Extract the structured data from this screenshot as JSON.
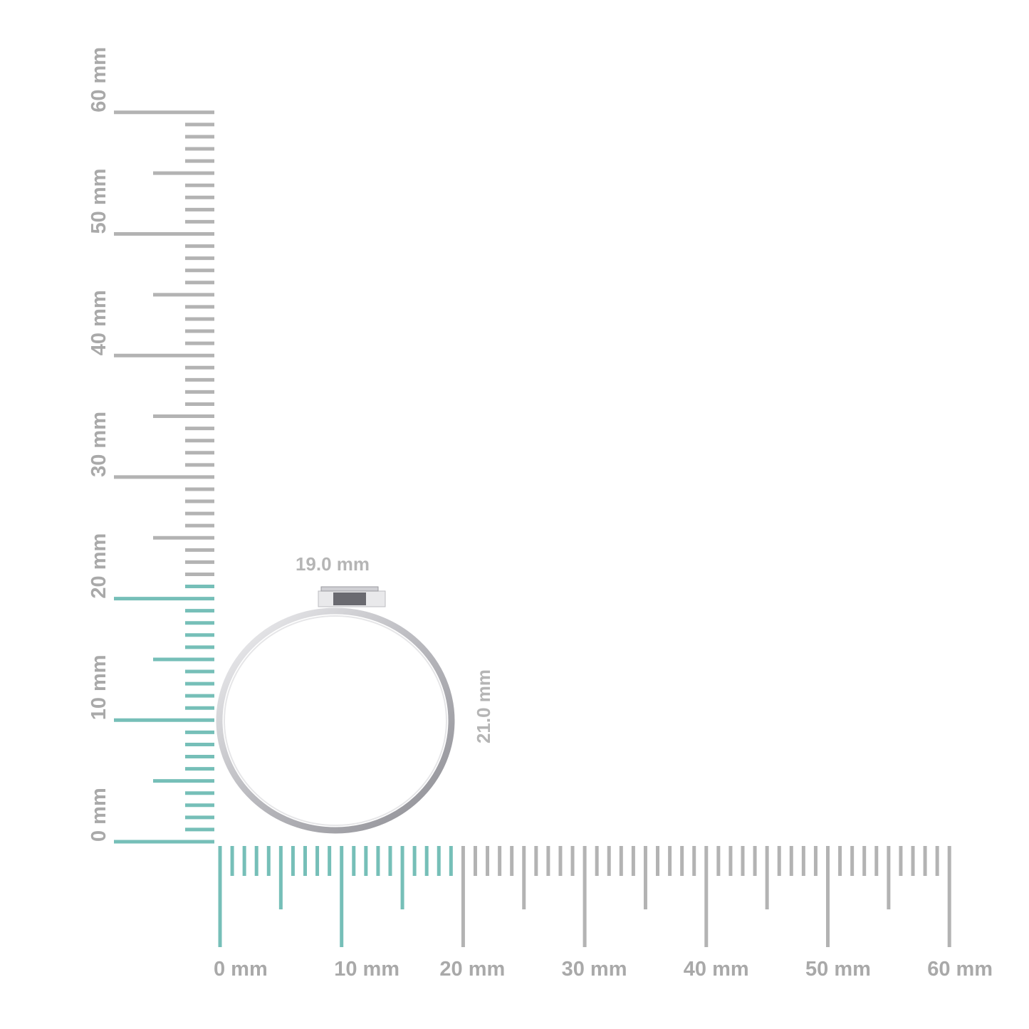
{
  "rulers": {
    "min_mm": 0,
    "max_mm": 60,
    "unit": "mm",
    "colors": {
      "highlight": "#76bfb8",
      "normal": "#b3b3b3",
      "label": "#a9a9a9"
    },
    "vertical": {
      "highlight_to_mm": 21,
      "labels": [
        "0 mm",
        "10 mm",
        "20 mm",
        "30 mm",
        "40 mm",
        "50 mm",
        "60 mm"
      ]
    },
    "horizontal": {
      "highlight_to_mm": 19,
      "labels": [
        "0 mm",
        "10 mm",
        "20 mm",
        "30 mm",
        "40 mm",
        "50 mm",
        "60 mm"
      ]
    }
  },
  "measurements": {
    "width": "19.0 mm",
    "height": "21.0 mm"
  },
  "product": {
    "type": "ring",
    "metal_color": "#c8c8cc",
    "stone_color": "#6a6a70"
  }
}
